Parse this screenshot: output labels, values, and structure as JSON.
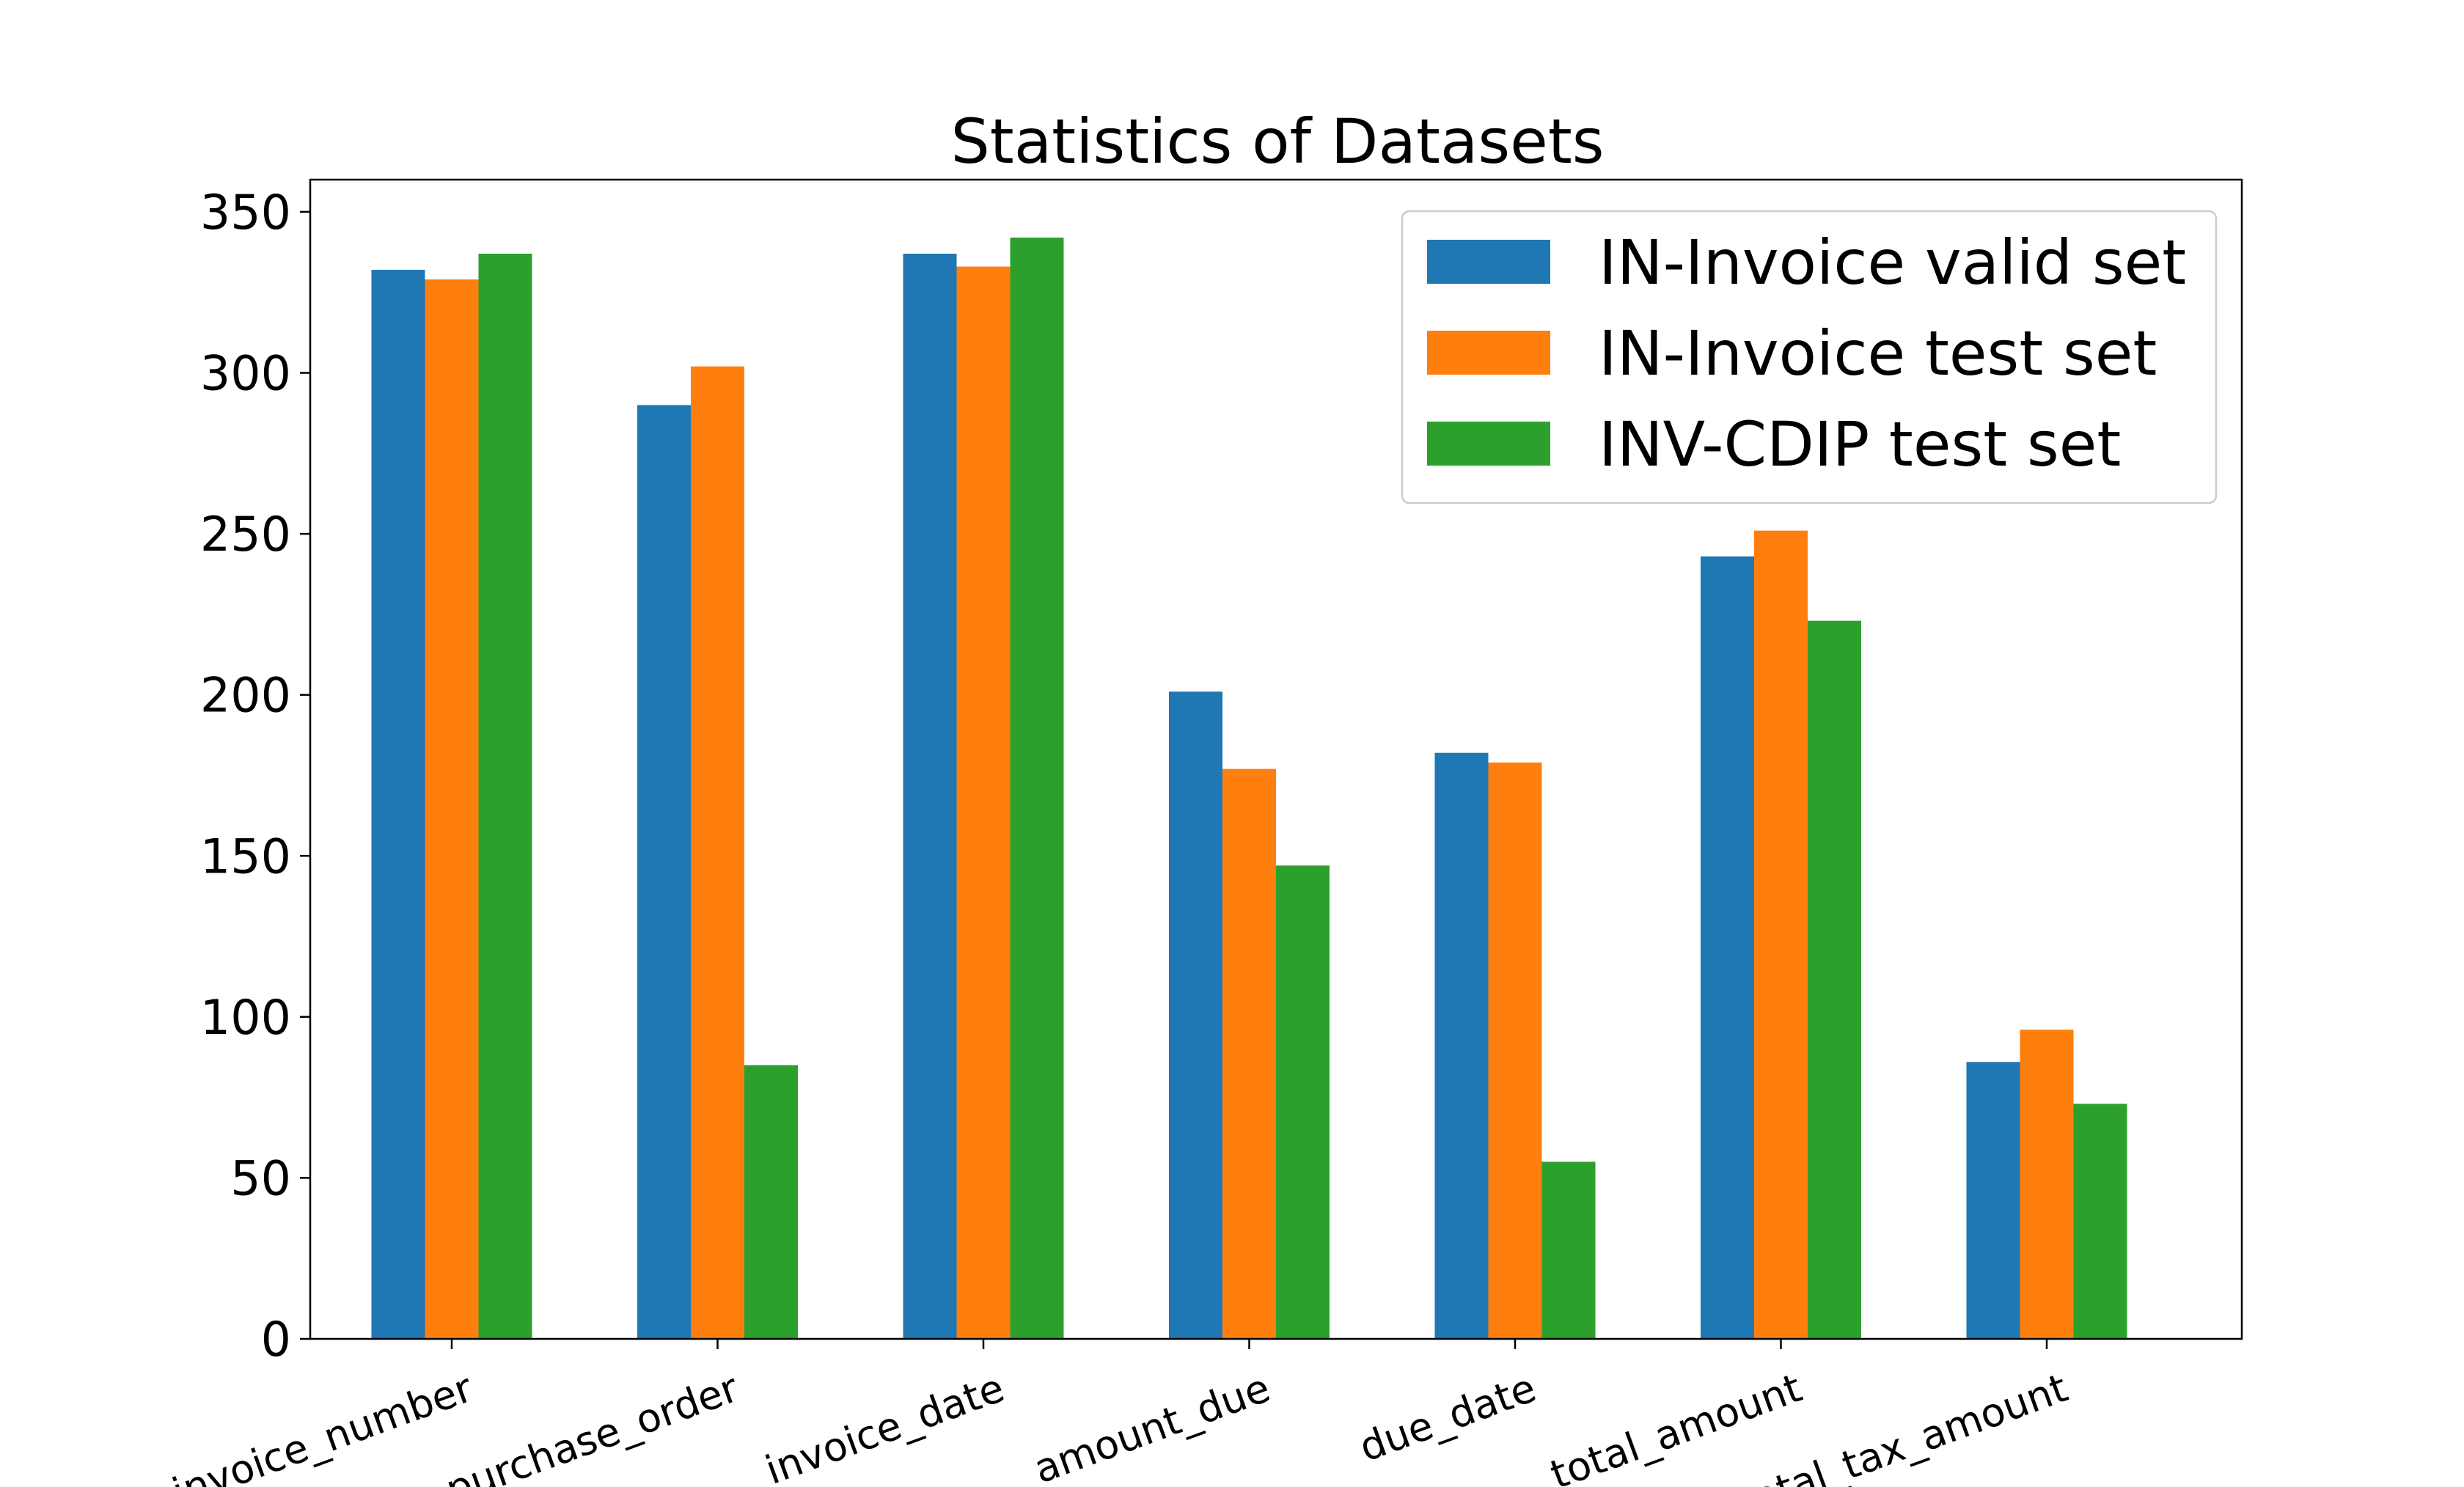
{
  "chart_data": {
    "type": "bar",
    "title": "Statistics of Datasets",
    "xlabel": "",
    "ylabel": "",
    "ylim": [
      0,
      360
    ],
    "yticks": [
      0,
      50,
      100,
      150,
      200,
      250,
      300,
      350
    ],
    "grid": false,
    "legend_position": "top-right",
    "categories": [
      "invoice_number",
      "purchase_order",
      "invoice_date",
      "amount_due",
      "due_date",
      "total_amount",
      "total_tax_amount"
    ],
    "series": [
      {
        "name": "IN-Invoice valid set",
        "color": "#1f77b4",
        "values": [
          332,
          290,
          337,
          201,
          182,
          243,
          86
        ]
      },
      {
        "name": "IN-Invoice test set",
        "color": "#ff7f0e",
        "values": [
          329,
          302,
          333,
          177,
          179,
          251,
          96
        ]
      },
      {
        "name": "INV-CDIP test set",
        "color": "#2ca02c",
        "values": [
          337,
          85,
          342,
          147,
          55,
          223,
          73
        ]
      }
    ]
  }
}
